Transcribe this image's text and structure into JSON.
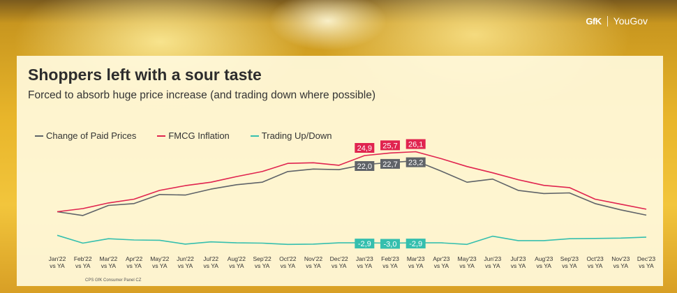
{
  "logo": {
    "gfk": "GfK",
    "yougov": "YouGov"
  },
  "header": {
    "title": "Shoppers left with a sour taste",
    "subtitle": "Forced to absorb huge price increase (and trading down where possible)"
  },
  "footnote": "CPS GfK Consumer Panel CZ",
  "colors": {
    "paid": "#5f6368",
    "inflation": "#e0244f",
    "trading": "#35bfae",
    "label_text": "#ffffff"
  },
  "chart_data": {
    "type": "line",
    "categories": [
      "Jan'22 vs YA",
      "Feb'22 vs YA",
      "Mar'22 vs YA",
      "Apr'22 vs YA",
      "May'22 vs YA",
      "Jun'22 vs YA",
      "Jul'22 vs YA",
      "Aug'22 vs YA",
      "Sep'22 vs YA",
      "Oct'22 vs YA",
      "Nov'22 vs YA",
      "Dec'22 vs YA",
      "Jan'23 vs YA",
      "Feb'23 vs YA",
      "Mar'23 vs YA",
      "Apr'23 vs YA",
      "May'23 vs YA",
      "Jun'23 vs YA",
      "Jul'23 vs YA",
      "Aug'23 vs YA",
      "Sep'23 vs YA",
      "Oct'23 vs YA",
      "Nov'23 vs YA",
      "Dec'23 vs YA"
    ],
    "series": [
      {
        "name": "Change of Paid Prices",
        "color": "#5f6368",
        "values": [
          7.0,
          5.8,
          9.0,
          9.6,
          12.5,
          12.3,
          14.2,
          15.6,
          16.4,
          19.8,
          20.6,
          20.4,
          22.0,
          22.7,
          23.2,
          19.9,
          16.4,
          17.4,
          13.8,
          12.8,
          13.0,
          9.6,
          7.6,
          5.9
        ]
      },
      {
        "name": "FMCG Inflation",
        "color": "#e0244f",
        "values": [
          7.0,
          8.0,
          9.8,
          11.0,
          13.8,
          15.3,
          16.4,
          18.2,
          19.8,
          22.4,
          22.6,
          21.8,
          24.9,
          25.7,
          26.1,
          23.9,
          21.4,
          19.4,
          17.2,
          15.4,
          14.7,
          11.0,
          9.4,
          7.8
        ]
      },
      {
        "name": "Trading Up/Down",
        "color": "#35bfae",
        "values": [
          -0.5,
          -3.0,
          -1.6,
          -2.0,
          -2.1,
          -3.3,
          -2.6,
          -2.9,
          -3.0,
          -3.4,
          -3.3,
          -2.9,
          -2.9,
          -3.0,
          -2.9,
          -2.9,
          -3.4,
          -0.8,
          -2.2,
          -2.2,
          -1.6,
          -1.5,
          -1.4,
          -1.1
        ]
      }
    ],
    "data_labels": [
      {
        "series": 1,
        "index": 12,
        "text": "24,9"
      },
      {
        "series": 1,
        "index": 13,
        "text": "25,7"
      },
      {
        "series": 1,
        "index": 14,
        "text": "26,1"
      },
      {
        "series": 0,
        "index": 12,
        "text": "22,0"
      },
      {
        "series": 0,
        "index": 13,
        "text": "22,7"
      },
      {
        "series": 0,
        "index": 14,
        "text": "23,2"
      },
      {
        "series": 2,
        "index": 12,
        "text": "-2,9"
      },
      {
        "series": 2,
        "index": 13,
        "text": "-3,0"
      },
      {
        "series": 2,
        "index": 14,
        "text": "-2,9"
      }
    ],
    "ylim": [
      -6,
      30
    ],
    "grid": false,
    "legend_position": "top-left",
    "title": "",
    "xlabel": "",
    "ylabel": ""
  }
}
